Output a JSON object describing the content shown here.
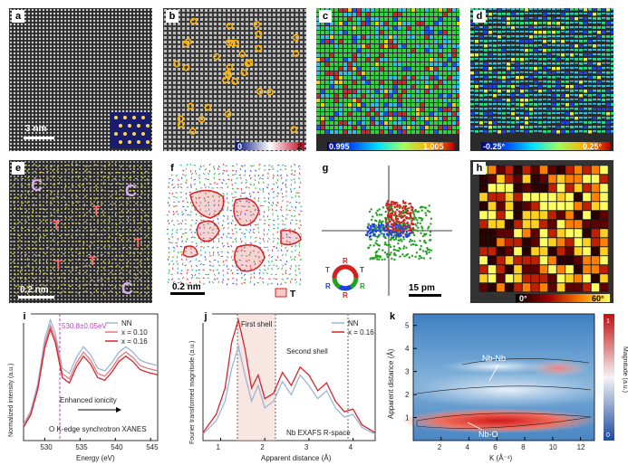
{
  "panels": {
    "a": {
      "label": "a",
      "scale_bar": "3 nm"
    },
    "b": {
      "label": "b",
      "cbar_min": "0",
      "cbar_max": "2"
    },
    "c": {
      "label": "c",
      "cbar_min": "0.995",
      "cbar_max": "1.005"
    },
    "d": {
      "label": "d",
      "cbar_min": "-0.25°",
      "cbar_max": "0.25°"
    },
    "e": {
      "label": "e",
      "scale_bar": "0.2 nm",
      "marker_c": "C",
      "marker_t": "T"
    },
    "f": {
      "label": "f",
      "scale_bar": "0.2 nm",
      "legend_t": "T"
    },
    "g": {
      "label": "g",
      "scale_bar": "15 pm",
      "ring_r": "R",
      "ring_t": "T"
    },
    "h": {
      "label": "h",
      "cbar_min": "0°",
      "cbar_max": "60°"
    },
    "i": {
      "label": "i",
      "annotation_edge": "530.8±0.05eV",
      "annotation_ionicity": "Enhanced ionicity",
      "annotation_caption": "O K-edge synchrotron XANES"
    },
    "j": {
      "label": "j",
      "first_shell": "First shell",
      "second_shell": "Second shell",
      "caption": "Nb EXAFS R-space"
    },
    "k": {
      "label": "k",
      "nbnb": "Nb-Nb",
      "nbo": "Nb-O",
      "cbar_label": "Magnitude (a.u.)",
      "cbar_top": "1",
      "cbar_bottom": "0"
    }
  },
  "chart_data": [
    {
      "type": "line",
      "panel": "i",
      "xlabel": "Energy (eV)",
      "ylabel": "Normalized intensity (a.u.)",
      "xlim": [
        527,
        546
      ],
      "xticks": [
        "530",
        "535",
        "540",
        "545"
      ],
      "series": [
        {
          "name": "NN",
          "color": "#9db4d6",
          "x": [
            527,
            528,
            529,
            530,
            530.8,
            531.5,
            532.5,
            533.5,
            534.5,
            535.5,
            536.5,
            537.5,
            538.5,
            539.5,
            540.5,
            541.5,
            542.5,
            543.5,
            544.5,
            546
          ],
          "y": [
            0.12,
            0.22,
            0.42,
            0.76,
            0.9,
            0.8,
            0.54,
            0.5,
            0.62,
            0.7,
            0.64,
            0.54,
            0.52,
            0.58,
            0.66,
            0.7,
            0.66,
            0.6,
            0.58,
            0.56
          ]
        },
        {
          "name": "x = 0.10",
          "color": "#e07a80",
          "x": [
            527,
            528,
            529,
            530,
            530.8,
            531.5,
            532.5,
            533.5,
            534.5,
            535.5,
            536.5,
            537.5,
            538.5,
            539.5,
            540.5,
            541.5,
            542.5,
            543.5,
            544.5,
            546
          ],
          "y": [
            0.11,
            0.2,
            0.4,
            0.72,
            0.86,
            0.76,
            0.5,
            0.46,
            0.58,
            0.66,
            0.6,
            0.5,
            0.48,
            0.54,
            0.62,
            0.66,
            0.62,
            0.56,
            0.54,
            0.52
          ]
        },
        {
          "name": "x = 0.16",
          "color": "#d4262e",
          "x": [
            527,
            528,
            529,
            530,
            530.8,
            531.5,
            532.5,
            533.5,
            534.5,
            535.5,
            536.5,
            537.5,
            538.5,
            539.5,
            540.5,
            541.5,
            542.5,
            543.5,
            544.5,
            546
          ],
          "y": [
            0.1,
            0.19,
            0.38,
            0.69,
            0.83,
            0.73,
            0.47,
            0.43,
            0.55,
            0.63,
            0.57,
            0.47,
            0.45,
            0.51,
            0.59,
            0.63,
            0.59,
            0.53,
            0.51,
            0.49
          ]
        }
      ]
    },
    {
      "type": "line",
      "panel": "j",
      "xlabel": "Apparent distance (Å)",
      "ylabel": "Fourier transformed magnitude (a.u.)",
      "xlim": [
        0.6,
        4.5
      ],
      "xticks": [
        "1",
        "2",
        "3",
        "4"
      ],
      "series": [
        {
          "name": "NN",
          "color": "#9db4d6",
          "x": [
            0.6,
            0.9,
            1.1,
            1.25,
            1.4,
            1.55,
            1.7,
            1.85,
            2.0,
            2.2,
            2.4,
            2.6,
            2.8,
            3.0,
            3.2,
            3.4,
            3.6,
            3.8,
            4.0,
            4.2,
            4.5
          ],
          "y": [
            0.05,
            0.15,
            0.3,
            0.55,
            0.72,
            0.5,
            0.3,
            0.42,
            0.25,
            0.3,
            0.45,
            0.35,
            0.5,
            0.42,
            0.32,
            0.38,
            0.25,
            0.18,
            0.2,
            0.1,
            0.05
          ]
        },
        {
          "name": "x = 0.16",
          "color": "#d4262e",
          "x": [
            0.6,
            0.9,
            1.1,
            1.25,
            1.4,
            1.55,
            1.7,
            1.85,
            2.0,
            2.2,
            2.4,
            2.6,
            2.8,
            3.0,
            3.2,
            3.4,
            3.6,
            3.8,
            4.0,
            4.2,
            4.5
          ],
          "y": [
            0.06,
            0.2,
            0.4,
            0.75,
            0.92,
            0.7,
            0.4,
            0.5,
            0.32,
            0.36,
            0.52,
            0.42,
            0.56,
            0.5,
            0.38,
            0.44,
            0.3,
            0.22,
            0.24,
            0.12,
            0.06
          ]
        }
      ]
    },
    {
      "type": "heatmap",
      "panel": "k",
      "xlabel": "K (Å⁻¹)",
      "ylabel": "Apparent distance (Å)",
      "xlim": [
        0,
        13
      ],
      "ylim": [
        0,
        5.5
      ],
      "xticks": [
        "2",
        "4",
        "6",
        "8",
        "10",
        "12"
      ],
      "yticks": [
        "1",
        "2",
        "3",
        "4",
        "5"
      ]
    }
  ]
}
